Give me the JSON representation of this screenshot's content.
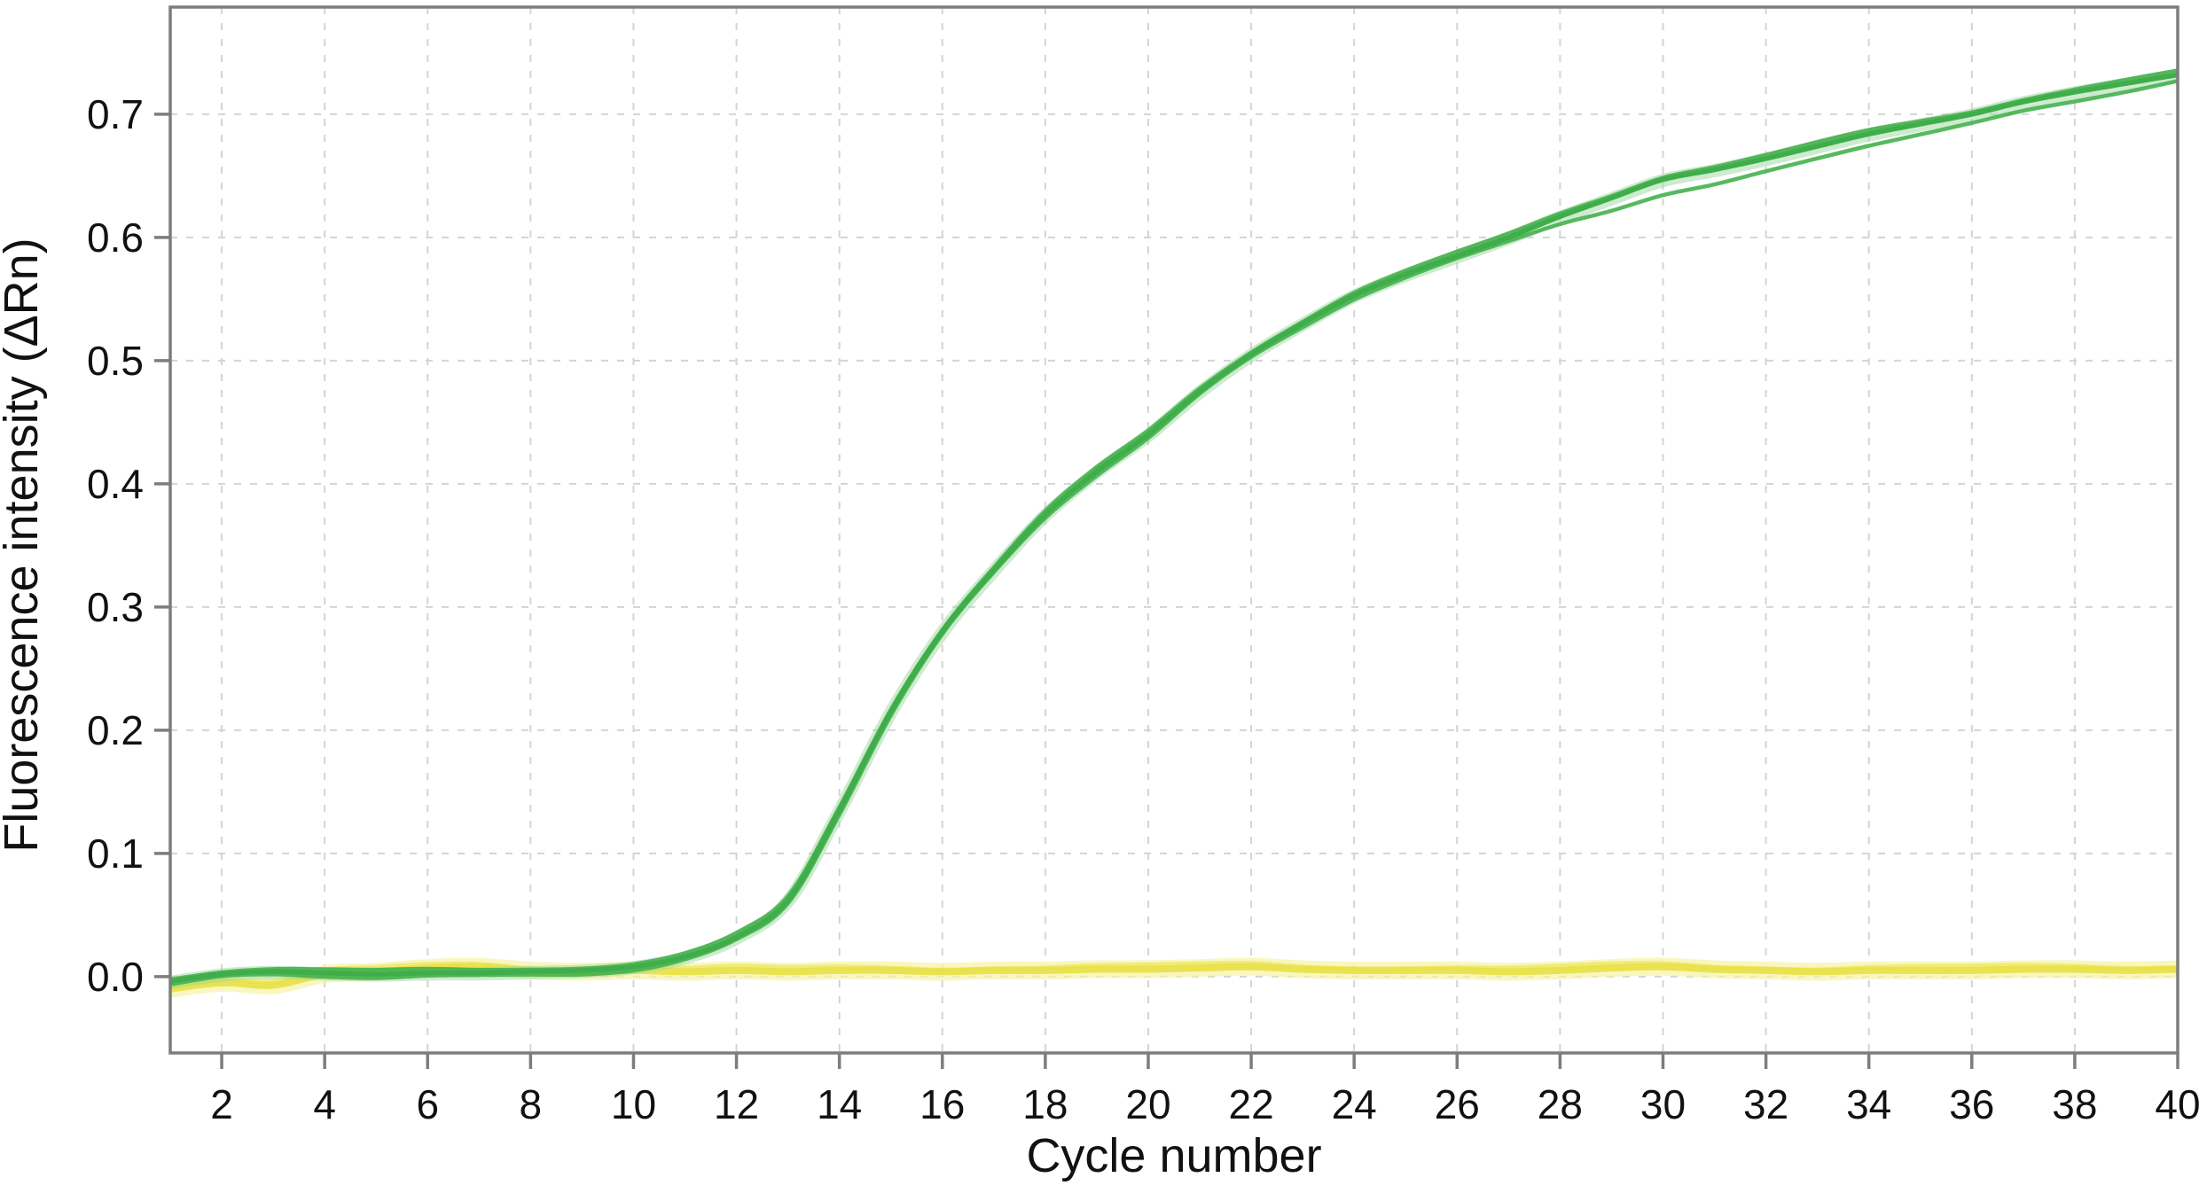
{
  "page": {
    "background": "#ffffff"
  },
  "chart_data": {
    "type": "line",
    "title": "",
    "xlabel": "Cycle number",
    "ylabel": "Fluorescence intensity (ΔRn)",
    "xlim": [
      1,
      40
    ],
    "ylim": [
      -0.062,
      0.787
    ],
    "x_ticks": [
      2,
      4,
      6,
      8,
      10,
      12,
      14,
      16,
      18,
      20,
      22,
      24,
      26,
      28,
      30,
      32,
      34,
      36,
      38,
      40
    ],
    "x_tick_labels": [
      "2",
      "4",
      "6",
      "8",
      "10",
      "12",
      "14",
      "16",
      "18",
      "20",
      "22",
      "24",
      "26",
      "28",
      "30",
      "32",
      "34",
      "36",
      "38",
      "40"
    ],
    "y_ticks": [
      0.0,
      0.1,
      0.2,
      0.3,
      0.4,
      0.5,
      0.6,
      0.7
    ],
    "y_tick_labels": [
      "0.0",
      "0.1",
      "0.2",
      "0.3",
      "0.4",
      "0.5",
      "0.6",
      "0.7"
    ],
    "grid": {
      "style": "dashed",
      "color": "#d4d4d4"
    },
    "frame_color": "#7d7d7d",
    "text_color": "#111111",
    "legend_position": "none",
    "x": [
      1,
      2,
      3,
      4,
      5,
      6,
      7,
      8,
      9,
      10,
      11,
      12,
      13,
      14,
      15,
      16,
      17,
      18,
      19,
      20,
      21,
      22,
      23,
      24,
      25,
      26,
      27,
      28,
      29,
      30,
      31,
      32,
      33,
      34,
      35,
      36,
      37,
      38,
      39,
      40
    ],
    "series": [
      {
        "name": "green-amplification-replicates",
        "color": "#3fad4a",
        "halo_color": "#9bd79e",
        "replicates": 3,
        "values": [
          -0.004,
          0.002,
          0.004,
          0.003,
          0.002,
          0.003,
          0.003,
          0.004,
          0.005,
          0.008,
          0.016,
          0.032,
          0.062,
          0.135,
          0.215,
          0.28,
          0.33,
          0.375,
          0.41,
          0.44,
          0.475,
          0.505,
          0.53,
          0.553,
          0.57,
          0.585,
          0.6,
          0.617,
          0.632,
          0.647,
          0.655,
          0.664,
          0.674,
          0.684,
          0.692,
          0.7,
          0.71,
          0.718,
          0.725,
          0.732
        ]
      },
      {
        "name": "yellow-baseline-replicates",
        "color": "#e8e24c",
        "halo_color": "#f6f3a6",
        "replicates": 2,
        "values": [
          -0.01,
          -0.005,
          -0.007,
          0.002,
          0.004,
          0.007,
          0.008,
          0.005,
          0.004,
          0.005,
          0.004,
          0.005,
          0.004,
          0.005,
          0.005,
          0.004,
          0.005,
          0.005,
          0.006,
          0.006,
          0.007,
          0.008,
          0.006,
          0.005,
          0.005,
          0.005,
          0.004,
          0.005,
          0.007,
          0.008,
          0.006,
          0.005,
          0.004,
          0.005,
          0.005,
          0.005,
          0.006,
          0.006,
          0.005,
          0.006
        ]
      }
    ]
  }
}
